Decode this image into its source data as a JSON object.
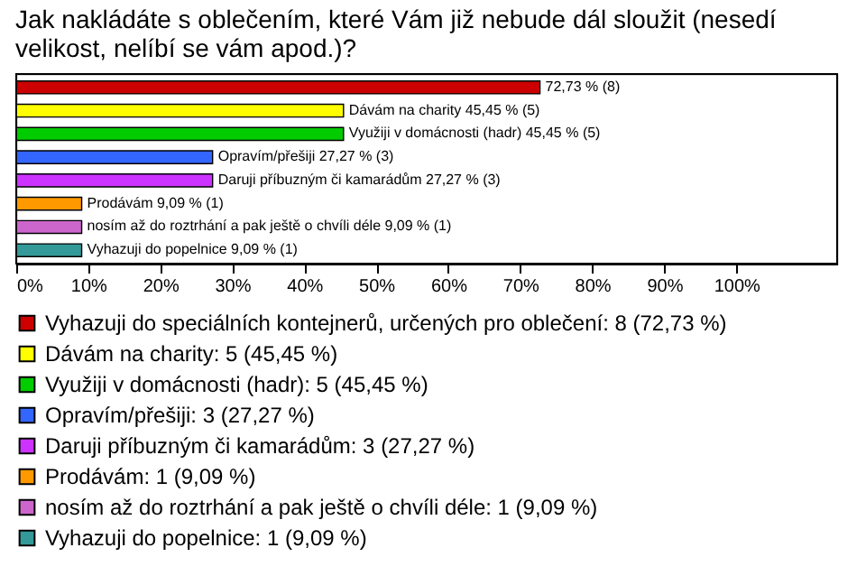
{
  "chart_data": {
    "type": "bar",
    "orientation": "horizontal",
    "title": "Jak nakládáte s oblečením, které Vám již nebude dál sloužit (nesedí velikost, nelíbí se vám apod.)?",
    "categories": [
      null,
      null,
      null,
      null,
      null,
      null,
      null,
      null
    ],
    "series": [
      {
        "name": "Vyhazuji do speciálních kontejnerů, určených pro oblečení: 8 (72,73 %)",
        "color": "#cc0000",
        "values": [
          72.73,
          null,
          null,
          null,
          null,
          null,
          null,
          null
        ],
        "value_labels": [
          "72,73 % (8)",
          null,
          null,
          null,
          null,
          null,
          null,
          null
        ]
      },
      {
        "name": "Dávám na charity: 5 (45,45 %)",
        "color": "#ffff00",
        "values": [
          null,
          45.45,
          null,
          null,
          null,
          null,
          null,
          null
        ],
        "value_labels": [
          null,
          "Dávám na charity 45,45 % (5)",
          null,
          null,
          null,
          null,
          null,
          null
        ]
      },
      {
        "name": "Využiji v domácnosti (hadr): 5 (45,45 %)",
        "color": "#00cc00",
        "values": [
          null,
          null,
          45.45,
          null,
          null,
          null,
          null,
          null
        ],
        "value_labels": [
          null,
          null,
          "Využiji v domácnosti (hadr) 45,45 % (5)",
          null,
          null,
          null,
          null,
          null
        ]
      },
      {
        "name": "Opravím/přešiji: 3 (27,27 %)",
        "color": "#3366ff",
        "values": [
          null,
          null,
          null,
          27.27,
          null,
          null,
          null,
          null
        ],
        "value_labels": [
          null,
          null,
          null,
          "Opravím/přešiji 27,27 % (3)",
          null,
          null,
          null,
          null
        ]
      },
      {
        "name": "Daruji příbuzným či kamarádům: 3 (27,27 %)",
        "color": "#cc33ff",
        "values": [
          null,
          null,
          null,
          null,
          27.27,
          null,
          null,
          null
        ],
        "value_labels": [
          null,
          null,
          null,
          null,
          "Daruji příbuzným či kamarádům 27,27 % (3)",
          null,
          null,
          null
        ]
      },
      {
        "name": "Prodávám: 1 (9,09 %)",
        "color": "#ff9900",
        "values": [
          null,
          null,
          null,
          null,
          null,
          9.09,
          null,
          null
        ],
        "value_labels": [
          null,
          null,
          null,
          null,
          null,
          "Prodávám 9,09 % (1)",
          null,
          null
        ]
      },
      {
        "name": "nosím až do roztrhání a pak ještě o chvíli déle: 1 (9,09 %)",
        "color": "#cc66cc",
        "values": [
          null,
          null,
          null,
          null,
          null,
          null,
          9.09,
          null
        ],
        "value_labels": [
          null,
          null,
          null,
          null,
          null,
          null,
          "nosím až do roztrhání a pak ještě o chvíli déle 9,09 % (1)",
          null
        ]
      },
      {
        "name": "Vyhazuji do popelnice: 1 (9,09 %)",
        "color": "#339999",
        "values": [
          null,
          null,
          null,
          null,
          null,
          null,
          null,
          9.09
        ],
        "value_labels": [
          null,
          null,
          null,
          null,
          null,
          null,
          null,
          "Vyhazuji do popelnice 9,09 % (1)"
        ]
      }
    ],
    "xlim": [
      0,
      114
    ],
    "xticks": [
      {
        "value": 0,
        "label": "0%"
      },
      {
        "value": 10,
        "label": "10%"
      },
      {
        "value": 20,
        "label": "20%"
      },
      {
        "value": 30,
        "label": "30%"
      },
      {
        "value": 40,
        "label": "40%"
      },
      {
        "value": 50,
        "label": "50%"
      },
      {
        "value": 60,
        "label": "60%"
      },
      {
        "value": 70,
        "label": "70%"
      },
      {
        "value": 80,
        "label": "80%"
      },
      {
        "value": 90,
        "label": "90%"
      },
      {
        "value": 100,
        "label": "100%"
      }
    ],
    "stacked": true,
    "tick_labels": "x",
    "grid": false,
    "legend": "bottom"
  }
}
